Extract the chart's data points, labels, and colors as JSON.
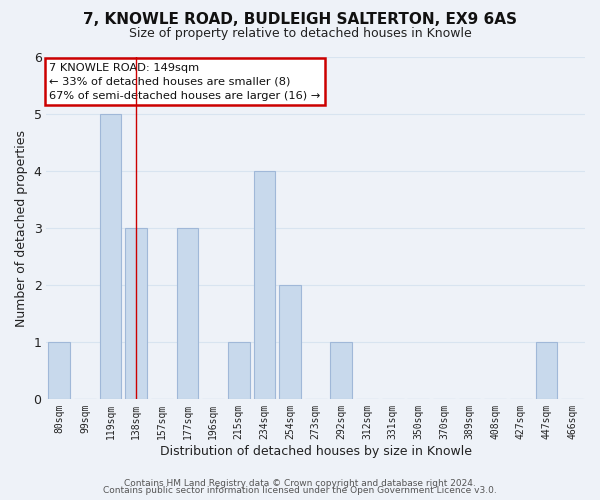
{
  "title": "7, KNOWLE ROAD, BUDLEIGH SALTERTON, EX9 6AS",
  "subtitle": "Size of property relative to detached houses in Knowle",
  "xlabel": "Distribution of detached houses by size in Knowle",
  "ylabel": "Number of detached properties",
  "bin_labels": [
    "80sqm",
    "99sqm",
    "119sqm",
    "138sqm",
    "157sqm",
    "177sqm",
    "196sqm",
    "215sqm",
    "234sqm",
    "254sqm",
    "273sqm",
    "292sqm",
    "312sqm",
    "331sqm",
    "350sqm",
    "370sqm",
    "389sqm",
    "408sqm",
    "427sqm",
    "447sqm",
    "466sqm"
  ],
  "bin_counts": [
    1,
    0,
    5,
    3,
    0,
    3,
    0,
    1,
    4,
    2,
    0,
    1,
    0,
    0,
    0,
    0,
    0,
    0,
    0,
    1,
    0
  ],
  "bar_color": "#c8d9ec",
  "bar_edge_color": "#a0b8d8",
  "subject_bin_index": 3,
  "annotation_line1": "7 KNOWLE ROAD: 149sqm",
  "annotation_line2": "← 33% of detached houses are smaller (8)",
  "annotation_line3": "67% of semi-detached houses are larger (16) →",
  "annotation_box_color": "white",
  "annotation_box_edge_color": "#cc0000",
  "ylim": [
    0,
    6
  ],
  "yticks": [
    0,
    1,
    2,
    3,
    4,
    5,
    6
  ],
  "grid_color": "#d8e4f0",
  "footer_line1": "Contains HM Land Registry data © Crown copyright and database right 2024.",
  "footer_line2": "Contains public sector information licensed under the Open Government Licence v3.0.",
  "background_color": "#eef2f8",
  "title_fontsize": 11,
  "subtitle_fontsize": 9
}
